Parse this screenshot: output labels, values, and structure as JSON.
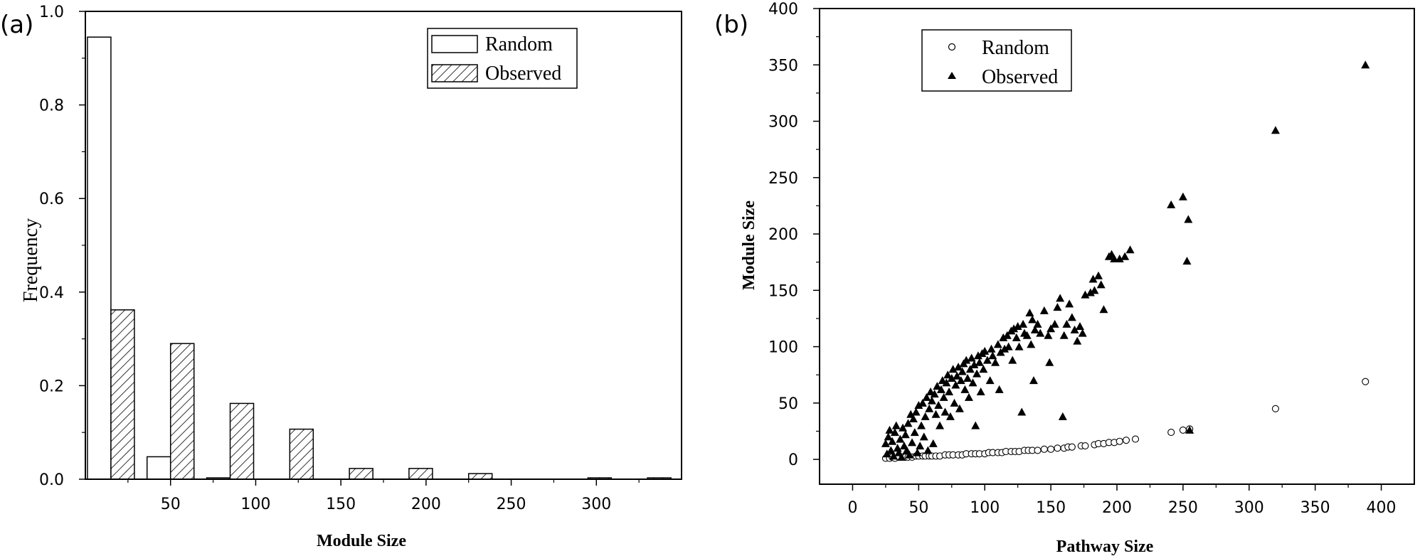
{
  "chart_data": [
    {
      "panel_label": "(a)",
      "type": "bar",
      "xlabel": "Module Size",
      "ylabel": "Frequency",
      "xlim": [
        0,
        350
      ],
      "ylim": [
        0,
        1.0
      ],
      "xticks": [
        50,
        100,
        150,
        200,
        250,
        300
      ],
      "yticks": [
        0.0,
        0.2,
        0.4,
        0.6,
        0.8,
        1.0
      ],
      "xtick_labels": [
        "50",
        "100",
        "150",
        "200",
        "250",
        "300"
      ],
      "ytick_labels": [
        "0.0",
        "0.2",
        "0.4",
        "0.6",
        "0.8",
        "1.0"
      ],
      "legend_position": "top-right",
      "series": [
        {
          "name": "Random",
          "style": "white",
          "x": [
            15,
            50,
            85,
            120,
            155,
            190,
            225,
            260,
            295,
            330
          ],
          "values": [
            0.945,
            0.048,
            0.003,
            0,
            0,
            0,
            0,
            0,
            0,
            0
          ]
        },
        {
          "name": "Observed",
          "style": "hatched",
          "x": [
            15,
            50,
            85,
            120,
            155,
            190,
            225,
            260,
            295,
            330
          ],
          "values": [
            0.362,
            0.29,
            0.162,
            0.107,
            0.023,
            0.023,
            0.012,
            0,
            0.003,
            0.003
          ]
        }
      ]
    },
    {
      "panel_label": "(b)",
      "type": "scatter",
      "xlabel": "Pathway Size",
      "ylabel": "Module Size",
      "xlim": [
        -25,
        425
      ],
      "ylim": [
        -22,
        400
      ],
      "xticks": [
        0,
        50,
        100,
        150,
        200,
        250,
        300,
        350,
        400
      ],
      "yticks": [
        0,
        50,
        100,
        150,
        200,
        250,
        300,
        350,
        400
      ],
      "xtick_labels": [
        "0",
        "50",
        "100",
        "150",
        "200",
        "250",
        "300",
        "350",
        "400"
      ],
      "ytick_labels": [
        "0",
        "50",
        "100",
        "150",
        "200",
        "250",
        "300",
        "350",
        "400"
      ],
      "legend_position": "top-left",
      "series": [
        {
          "name": "Random",
          "marker": "open-circle",
          "points": [
            [
              25,
              1
            ],
            [
              28,
              1
            ],
            [
              30,
              2
            ],
            [
              32,
              1
            ],
            [
              35,
              2
            ],
            [
              38,
              2
            ],
            [
              40,
              2
            ],
            [
              42,
              2
            ],
            [
              45,
              2
            ],
            [
              48,
              3
            ],
            [
              50,
              3
            ],
            [
              53,
              3
            ],
            [
              55,
              3
            ],
            [
              58,
              3
            ],
            [
              60,
              3
            ],
            [
              63,
              3
            ],
            [
              66,
              3
            ],
            [
              70,
              4
            ],
            [
              73,
              4
            ],
            [
              76,
              4
            ],
            [
              80,
              4
            ],
            [
              83,
              4
            ],
            [
              86,
              5
            ],
            [
              90,
              5
            ],
            [
              93,
              5
            ],
            [
              96,
              5
            ],
            [
              100,
              5
            ],
            [
              103,
              6
            ],
            [
              106,
              6
            ],
            [
              110,
              6
            ],
            [
              113,
              6
            ],
            [
              116,
              7
            ],
            [
              120,
              7
            ],
            [
              123,
              7
            ],
            [
              126,
              7
            ],
            [
              130,
              8
            ],
            [
              133,
              8
            ],
            [
              136,
              8
            ],
            [
              140,
              8
            ],
            [
              145,
              9
            ],
            [
              150,
              9
            ],
            [
              155,
              10
            ],
            [
              160,
              10
            ],
            [
              163,
              11
            ],
            [
              166,
              11
            ],
            [
              173,
              12
            ],
            [
              176,
              12
            ],
            [
              183,
              13
            ],
            [
              186,
              14
            ],
            [
              190,
              14
            ],
            [
              194,
              15
            ],
            [
              198,
              15
            ],
            [
              202,
              16
            ],
            [
              207,
              17
            ],
            [
              214,
              18
            ],
            [
              241,
              24
            ],
            [
              250,
              26
            ],
            [
              255,
              27
            ],
            [
              320,
              45
            ],
            [
              388,
              69
            ]
          ]
        },
        {
          "name": "Observed",
          "marker": "filled-triangle",
          "points": [
            [
              25,
              14
            ],
            [
              26,
              5
            ],
            [
              27,
              20
            ],
            [
              28,
              26
            ],
            [
              29,
              8
            ],
            [
              30,
              16
            ],
            [
              31,
              3
            ],
            [
              32,
              24
            ],
            [
              33,
              30
            ],
            [
              34,
              10
            ],
            [
              35,
              6
            ],
            [
              36,
              18
            ],
            [
              37,
              2
            ],
            [
              38,
              28
            ],
            [
              39,
              12
            ],
            [
              40,
              22
            ],
            [
              41,
              8
            ],
            [
              42,
              32
            ],
            [
              43,
              4
            ],
            [
              44,
              40
            ],
            [
              45,
              15
            ],
            [
              46,
              36
            ],
            [
              47,
              24
            ],
            [
              48,
              42
            ],
            [
              49,
              6
            ],
            [
              50,
              48
            ],
            [
              51,
              12
            ],
            [
              52,
              30
            ],
            [
              53,
              50
            ],
            [
              54,
              20
            ],
            [
              55,
              38
            ],
            [
              56,
              55
            ],
            [
              57,
              8
            ],
            [
              58,
              45
            ],
            [
              59,
              60
            ],
            [
              60,
              52
            ],
            [
              61,
              14
            ],
            [
              62,
              58
            ],
            [
              63,
              40
            ],
            [
              64,
              65
            ],
            [
              65,
              48
            ],
            [
              66,
              30
            ],
            [
              67,
              62
            ],
            [
              68,
              70
            ],
            [
              69,
              55
            ],
            [
              70,
              42
            ],
            [
              71,
              68
            ],
            [
              72,
              75
            ],
            [
              73,
              60
            ],
            [
              74,
              38
            ],
            [
              75,
              72
            ],
            [
              76,
              80
            ],
            [
              77,
              50
            ],
            [
              78,
              66
            ],
            [
              79,
              74
            ],
            [
              80,
              82
            ],
            [
              81,
              45
            ],
            [
              82,
              70
            ],
            [
              83,
              78
            ],
            [
              84,
              85
            ],
            [
              85,
              62
            ],
            [
              86,
              88
            ],
            [
              87,
              72
            ],
            [
              88,
              55
            ],
            [
              89,
              80
            ],
            [
              90,
              90
            ],
            [
              91,
              68
            ],
            [
              92,
              84
            ],
            [
              93,
              30
            ],
            [
              94,
              76
            ],
            [
              95,
              92
            ],
            [
              96,
              86
            ],
            [
              97,
              60
            ],
            [
              98,
              94
            ],
            [
              99,
              80
            ],
            [
              100,
              96
            ],
            [
              102,
              88
            ],
            [
              104,
              70
            ],
            [
              105,
              98
            ],
            [
              106,
              92
            ],
            [
              108,
              86
            ],
            [
              110,
              102
            ],
            [
              111,
              62
            ],
            [
              112,
              95
            ],
            [
              114,
              108
            ],
            [
              115,
              98
            ],
            [
              117,
              110
            ],
            [
              118,
              100
            ],
            [
              120,
              114
            ],
            [
              121,
              88
            ],
            [
              122,
              116
            ],
            [
              124,
              108
            ],
            [
              125,
              118
            ],
            [
              126,
              100
            ],
            [
              128,
              42
            ],
            [
              129,
              120
            ],
            [
              130,
              112
            ],
            [
              132,
              110
            ],
            [
              134,
              130
            ],
            [
              135,
              102
            ],
            [
              136,
              124
            ],
            [
              137,
              70
            ],
            [
              138,
              115
            ],
            [
              140,
              120
            ],
            [
              142,
              112
            ],
            [
              145,
              132
            ],
            [
              148,
              110
            ],
            [
              149,
              86
            ],
            [
              150,
              116
            ],
            [
              153,
              120
            ],
            [
              155,
              135
            ],
            [
              157,
              143
            ],
            [
              159,
              38
            ],
            [
              160,
              110
            ],
            [
              162,
              120
            ],
            [
              164,
              138
            ],
            [
              166,
              126
            ],
            [
              168,
              115
            ],
            [
              170,
              105
            ],
            [
              172,
              118
            ],
            [
              174,
              112
            ],
            [
              176,
              146
            ],
            [
              180,
              148
            ],
            [
              182,
              160
            ],
            [
              183,
              150
            ],
            [
              186,
              163
            ],
            [
              188,
              155
            ],
            [
              190,
              133
            ],
            [
              194,
              180
            ],
            [
              196,
              182
            ],
            [
              198,
              178
            ],
            [
              202,
              178
            ],
            [
              206,
              180
            ],
            [
              210,
              186
            ],
            [
              241,
              226
            ],
            [
              250,
              233
            ],
            [
              254,
              213
            ],
            [
              253,
              176
            ],
            [
              255,
              26
            ],
            [
              320,
              292
            ],
            [
              388,
              350
            ]
          ]
        }
      ]
    }
  ]
}
